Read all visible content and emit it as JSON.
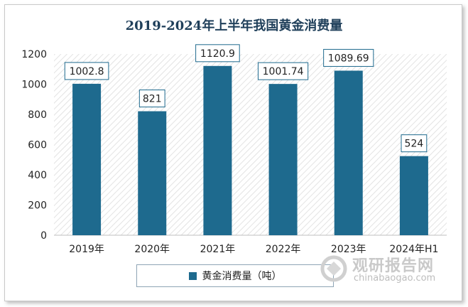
{
  "chart_data": {
    "type": "bar",
    "title": "2019-2024年上半年我国黄金消费量",
    "categories": [
      "2019年",
      "2020年",
      "2021年",
      "2022年",
      "2023年",
      "2024年H1"
    ],
    "series": [
      {
        "name": "黄金消费量（吨）",
        "values": [
          1002.8,
          821,
          1120.9,
          1001.74,
          1089.69,
          524
        ]
      }
    ],
    "data_labels": [
      "1002.8",
      "821",
      "1120.9",
      "1001.74",
      "1089.69",
      "524"
    ],
    "yticks": [
      "0",
      "200",
      "400",
      "600",
      "800",
      "1000",
      "1200"
    ],
    "ylim": [
      0,
      1200
    ],
    "grid": false,
    "legend": "bottom-center",
    "colors": {
      "bar": "#1e6a8e",
      "label_border": "#1e6a8e",
      "plot_hatch": "#e3e3e3"
    }
  },
  "watermark": {
    "name": "观研报告网",
    "url": "chinabaogao.com"
  }
}
